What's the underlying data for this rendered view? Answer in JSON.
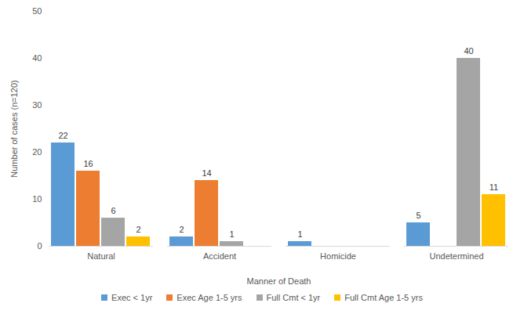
{
  "chart_data": {
    "type": "bar",
    "x_label": "Manner of Death",
    "y_label": "Number of cases (n=120)",
    "categories": [
      "Natural",
      "Accident",
      "Homicide",
      "Undetermined"
    ],
    "series": [
      {
        "name": "Exec < 1yr",
        "color": "#5b9bd5",
        "values": [
          22,
          2,
          1,
          5
        ]
      },
      {
        "name": "Exec Age 1-5 yrs",
        "color": "#ed7d31",
        "values": [
          16,
          14,
          null,
          null
        ]
      },
      {
        "name": "Full Cmt < 1yr",
        "color": "#a5a5a5",
        "values": [
          6,
          1,
          null,
          40
        ]
      },
      {
        "name": "Full Cmt Age 1-5 yrs",
        "color": "#ffc000",
        "values": [
          2,
          null,
          null,
          11
        ]
      }
    ],
    "ylim": [
      0,
      50
    ],
    "yticks": [
      0,
      10,
      20,
      30,
      40,
      50
    ],
    "grid": false,
    "legend": "bottom",
    "data_labels": true
  }
}
